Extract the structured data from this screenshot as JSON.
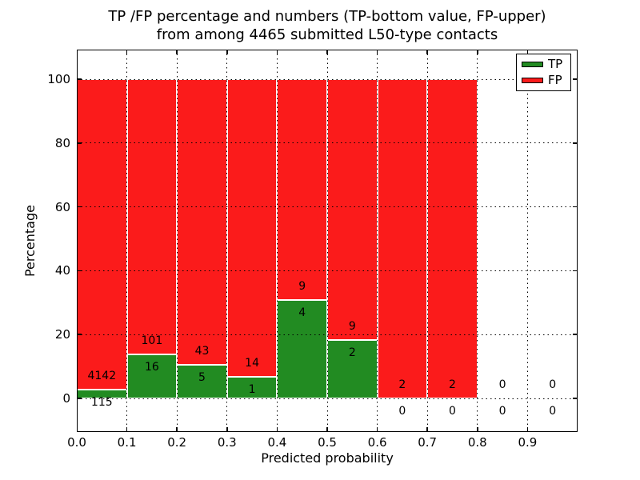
{
  "title": {
    "line1": "TP /FP percentage and numbers (TP-bottom value, FP-upper)",
    "line2": "from among 4465 submitted L50-type contacts"
  },
  "axes": {
    "xlabel": "Predicted probability",
    "ylabel": "Percentage",
    "xtick_labels": [
      "0.0",
      "0.1",
      "0.2",
      "0.3",
      "0.4",
      "0.5",
      "0.6",
      "0.7",
      "0.8",
      "0.9"
    ],
    "ytick_values": [
      0,
      20,
      40,
      60,
      80,
      100
    ]
  },
  "legend": {
    "items": [
      {
        "label": "TP",
        "color": "#228b22"
      },
      {
        "label": "FP",
        "color": "#fb1b1b"
      }
    ],
    "position": "upper right"
  },
  "colors": {
    "tp": "#228b22",
    "fp": "#fb1b1b",
    "grid": "#000000",
    "frame": "#000000",
    "background": "#ffffff"
  },
  "chart_data": {
    "type": "bar",
    "stacked": true,
    "normalized": "percent (each bin scaled to 100%)",
    "title": "TP /FP percentage and numbers (TP-bottom value, FP-upper) from among 4465 submitted L50-type contacts",
    "xlabel": "Predicted probability",
    "ylabel": "Percentage",
    "total_contacts": 4465,
    "bin_width": 0.1,
    "xlim": [
      0.0,
      1.0
    ],
    "ylim": [
      -10.5,
      109.5
    ],
    "grid": true,
    "label_convention": "TP count below boundary, FP count above boundary",
    "bins": [
      {
        "x0": 0.0,
        "x1": 0.1,
        "tp": 115,
        "fp": 4142,
        "tp_percent": 2.7
      },
      {
        "x0": 0.1,
        "x1": 0.2,
        "tp": 16,
        "fp": 101,
        "tp_percent": 13.7
      },
      {
        "x0": 0.2,
        "x1": 0.3,
        "tp": 5,
        "fp": 43,
        "tp_percent": 10.4
      },
      {
        "x0": 0.3,
        "x1": 0.4,
        "tp": 1,
        "fp": 14,
        "tp_percent": 6.7
      },
      {
        "x0": 0.4,
        "x1": 0.5,
        "tp": 4,
        "fp": 9,
        "tp_percent": 30.8
      },
      {
        "x0": 0.5,
        "x1": 0.6,
        "tp": 2,
        "fp": 9,
        "tp_percent": 18.2
      },
      {
        "x0": 0.6,
        "x1": 0.7,
        "tp": 0,
        "fp": 2,
        "tp_percent": 0
      },
      {
        "x0": 0.7,
        "x1": 0.8,
        "tp": 0,
        "fp": 2,
        "tp_percent": 0
      },
      {
        "x0": 0.8,
        "x1": 0.9,
        "tp": 0,
        "fp": 0,
        "tp_percent": null
      },
      {
        "x0": 0.9,
        "x1": 1.0,
        "tp": 0,
        "fp": 0,
        "tp_percent": null
      }
    ]
  }
}
